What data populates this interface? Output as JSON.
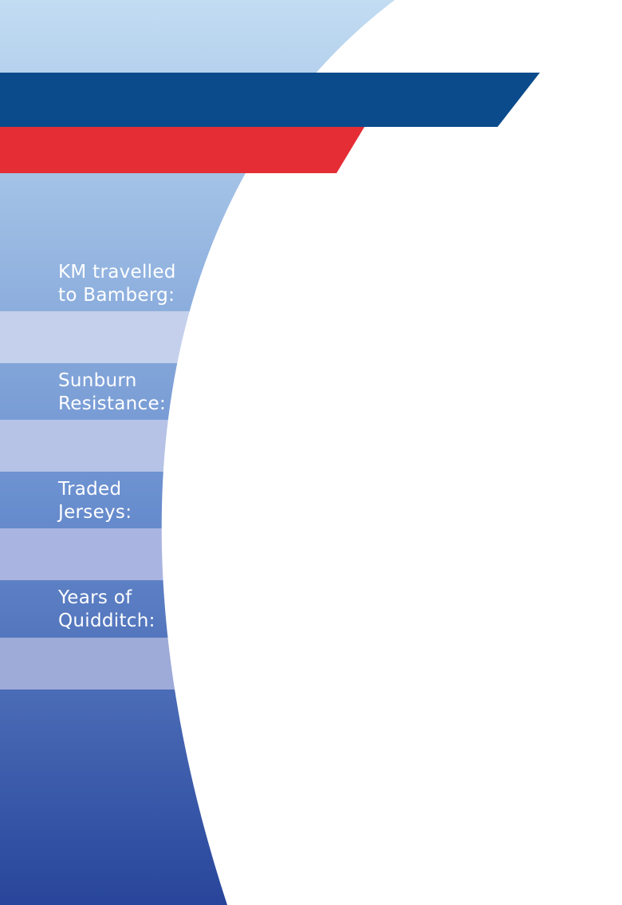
{
  "card": {
    "colors": {
      "navy_stripe": "#0b4b8c",
      "red_stripe": "#e52d35",
      "panel": "#ffffff"
    },
    "stats": [
      {
        "line1": "KM travelled",
        "line2": "to Bamberg:"
      },
      {
        "line1": "Sunburn",
        "line2": "Resistance:"
      },
      {
        "line1": "Traded",
        "line2": "Jerseys:"
      },
      {
        "line1": "Years of",
        "line2": "Quidditch:"
      }
    ]
  }
}
